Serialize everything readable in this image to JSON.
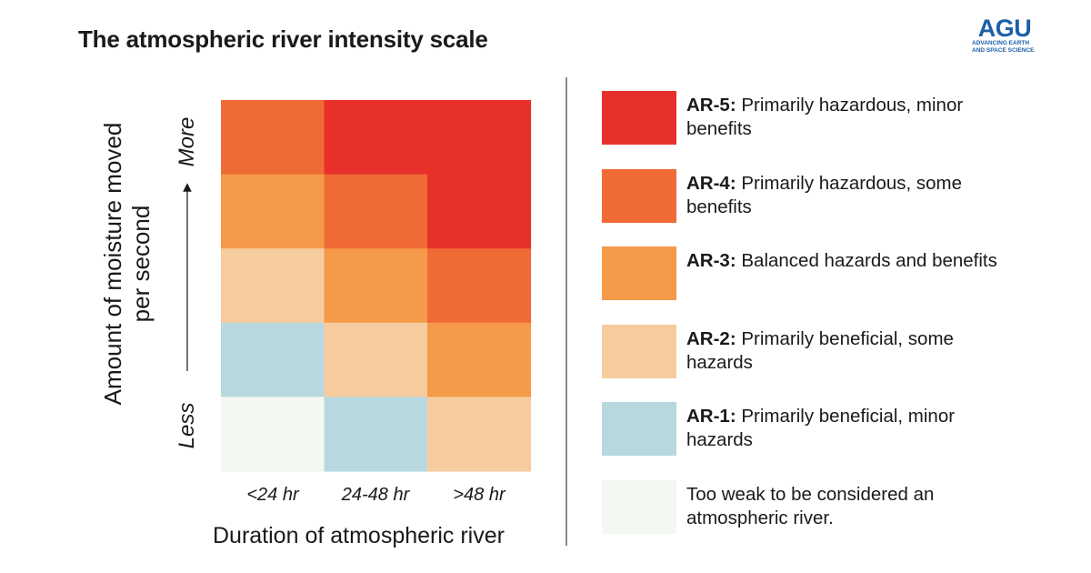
{
  "title": "The atmospheric river intensity scale",
  "logo": {
    "mark": "AGU",
    "tagline_1": "ADVANCING EARTH",
    "tagline_2": "AND SPACE SCIENCE"
  },
  "colors": {
    "AR-5": "#e8302a",
    "AR-4": "#f06a36",
    "AR-3": "#f49a48",
    "AR-2": "#f6cc9f",
    "AR-1": "#b8d8df",
    "weak": "#f4f8f2"
  },
  "chart_data": {
    "type": "heatmap",
    "xlabel": "Duration of atmospheric river",
    "ylabel_line1": "Amount of moisture moved",
    "ylabel_line2": "per second",
    "y_low_label": "Less",
    "y_high_label": "More",
    "x_categories": [
      "<24 hr",
      "24-48 hr",
      ">48 hr"
    ],
    "y_levels": 5,
    "cells": [
      [
        "AR-4",
        "AR-5",
        "AR-5"
      ],
      [
        "AR-3",
        "AR-4",
        "AR-5"
      ],
      [
        "AR-2",
        "AR-3",
        "AR-4"
      ],
      [
        "AR-1",
        "AR-2",
        "AR-3"
      ],
      [
        "weak",
        "AR-1",
        "AR-2"
      ]
    ]
  },
  "legend": [
    {
      "key": "AR-5",
      "code": "AR-5:",
      "text": " Primarily hazardous, minor benefits"
    },
    {
      "key": "AR-4",
      "code": "AR-4:",
      "text": " Primarily hazardous, some benefits"
    },
    {
      "key": "AR-3",
      "code": "AR-3:",
      "text": " Balanced hazards and benefits"
    },
    {
      "key": "AR-2",
      "code": "AR-2:",
      "text": " Primarily beneficial, some hazards"
    },
    {
      "key": "AR-1",
      "code": "AR-1:",
      "text": " Primarily beneficial, minor hazards"
    },
    {
      "key": "weak",
      "code": "",
      "text": "Too weak to be considered an atmospheric river."
    }
  ]
}
